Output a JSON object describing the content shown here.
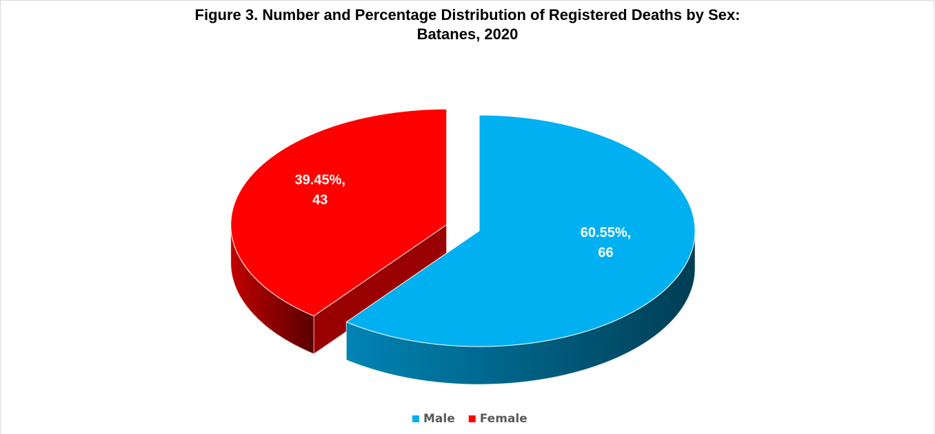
{
  "chart_data": {
    "type": "pie3d",
    "title": "Figure 3. Number and Percentage Distribution of Registered Deaths by Sex: Batanes, 2020",
    "categories": [
      "Male",
      "Female"
    ],
    "values": [
      66,
      43
    ],
    "percentages": [
      60.55,
      39.45
    ],
    "percentage_labels": [
      "60.55%,",
      "39.45%,"
    ],
    "colors": [
      "#00b0f0",
      "#ff0000"
    ],
    "explode": [
      false,
      true
    ],
    "legend": "bottom"
  }
}
